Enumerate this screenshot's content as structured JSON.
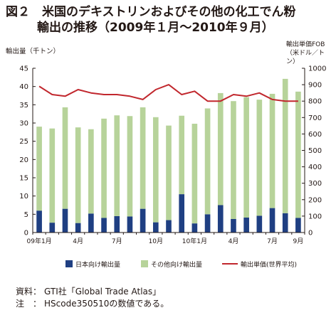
{
  "title_line1": "図２　米国のデキストリンおよびその他の化工でん粉",
  "title_line2": "輸出の推移（2009年１月〜2010年９月）",
  "source": {
    "label1": "資料：",
    "text1": "GTI社「Global Trade Atlas」",
    "label2": "注　：",
    "text2": "HScode350510の数値である。"
  },
  "colors": {
    "japan": "#1f3f82",
    "other": "#b7d39a",
    "price": "#c1272d",
    "axis": "#231815"
  },
  "chart_data": {
    "type": "bar+line",
    "xlabel": "",
    "ylabel": "輸出量（千トン）",
    "y2label": [
      "輸出単価FOB",
      "（米ドル／トン）"
    ],
    "ylim": [
      0,
      45
    ],
    "y2lim": [
      0,
      1000
    ],
    "yticks": [
      0,
      5,
      10,
      15,
      20,
      25,
      30,
      35,
      40,
      45
    ],
    "y2ticks": [
      0,
      100,
      200,
      300,
      400,
      500,
      600,
      700,
      800,
      900,
      1000
    ],
    "categories": [
      "09年1月",
      "2",
      "3",
      "4",
      "5",
      "6",
      "7",
      "8",
      "9",
      "10",
      "11",
      "12",
      "10年1月",
      "2",
      "3",
      "4",
      "5",
      "6",
      "7",
      "8",
      "9"
    ],
    "tick_labels": [
      "09年1月",
      "",
      "",
      "4月",
      "",
      "",
      "7月",
      "",
      "",
      "10月",
      "",
      "",
      "10年1月",
      "",
      "",
      "4月",
      "",
      "",
      "7月",
      "",
      "9月"
    ],
    "stacked": true,
    "series": [
      {
        "name": "日本向け輸出量",
        "kind": "bar",
        "values": [
          6.0,
          2.7,
          6.5,
          2.6,
          5.2,
          4.0,
          4.5,
          4.4,
          6.5,
          2.8,
          3.4,
          10.5,
          2.5,
          5.0,
          7.5,
          3.7,
          4.1,
          4.6,
          6.7,
          5.3,
          4.0
        ]
      },
      {
        "name": "その他向け輸出量",
        "kind": "bar",
        "values": [
          23.0,
          25.8,
          27.8,
          26.2,
          23.1,
          27.2,
          27.6,
          27.5,
          27.8,
          28.8,
          25.9,
          21.5,
          27.3,
          29.0,
          30.7,
          32.3,
          33.0,
          31.8,
          31.3,
          36.8,
          34.6
        ]
      },
      {
        "name": "輸出単価(世界平均)",
        "kind": "line",
        "axis": "right",
        "values": [
          890,
          840,
          830,
          870,
          850,
          840,
          840,
          830,
          810,
          870,
          900,
          840,
          860,
          800,
          800,
          840,
          830,
          850,
          810,
          800,
          800
        ]
      }
    ],
    "grid": false,
    "legend": "bottom"
  }
}
